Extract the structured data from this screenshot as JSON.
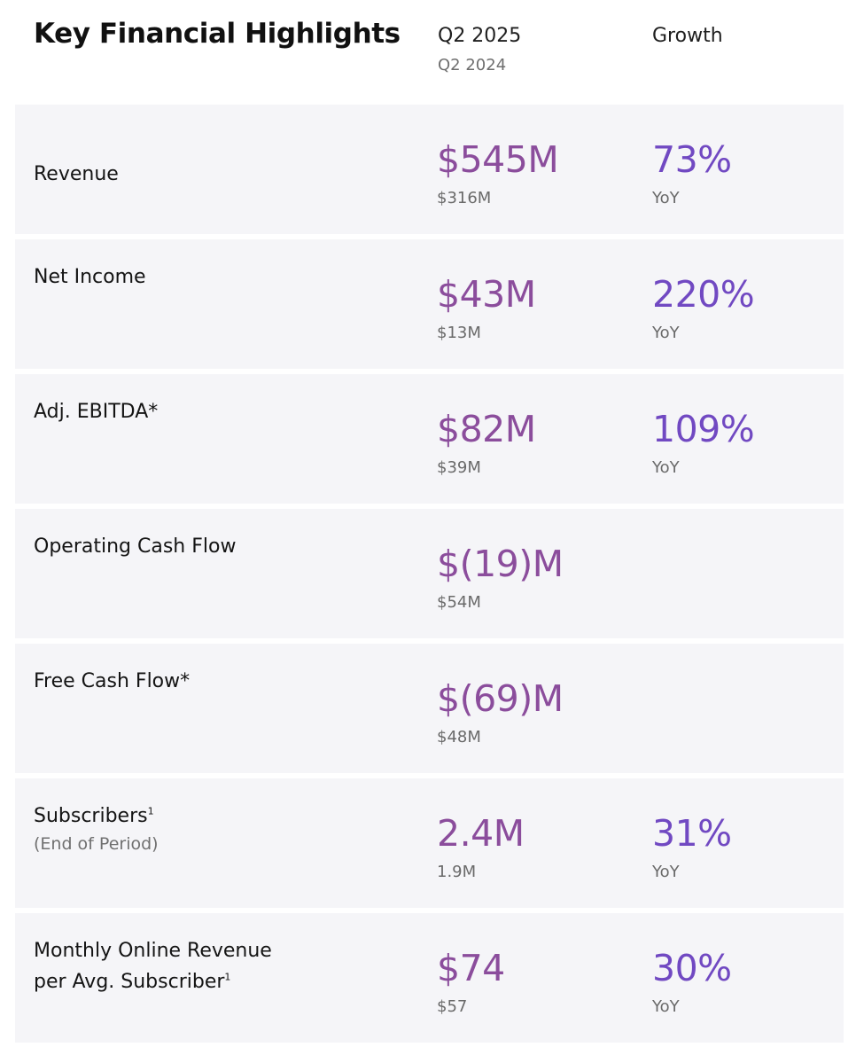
{
  "header": {
    "title": "Key Financial Highlights",
    "current_period": "Q2 2025",
    "prior_period": "Q2 2024",
    "growth_label": "Growth"
  },
  "rows": [
    {
      "label": "Revenue",
      "value": "$545M",
      "prior": "$316M",
      "growth": "73%",
      "yoy": "YoY"
    },
    {
      "label": "Net Income",
      "value": "$43M",
      "prior": "$13M",
      "growth": "220%",
      "yoy": "YoY"
    },
    {
      "label": "Adj. EBITDA*",
      "value": "$82M",
      "prior": "$39M",
      "growth": "109%",
      "yoy": "YoY"
    },
    {
      "label": "Operating Cash Flow",
      "value": "$(19)M",
      "prior": "$54M"
    },
    {
      "label": "Free Cash Flow*",
      "value": "$(69)M",
      "prior": "$48M"
    },
    {
      "label": "Subscribers",
      "sup": "1",
      "note": "(End of Period)",
      "value": "2.4M",
      "prior": "1.9M",
      "growth": "31%",
      "yoy": "YoY"
    },
    {
      "label_line1": "Monthly Online Revenue",
      "label_line2": "per Avg. Subscriber",
      "sup": "1",
      "value": "$74",
      "prior": "$57",
      "growth": "30%",
      "yoy": "YoY"
    }
  ],
  "colors": {
    "value": "#8b4d9c",
    "growth": "#7149c2",
    "row_background": "#f5f5f8"
  }
}
